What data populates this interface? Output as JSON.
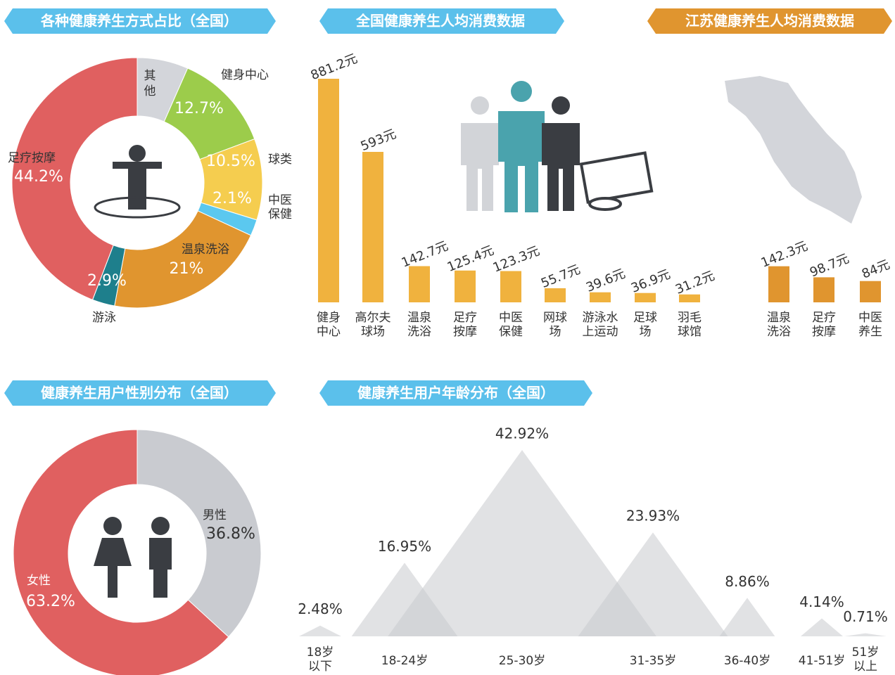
{
  "chart_data": [
    {
      "type": "donut",
      "title": "各种健康养生方式占比（全国）",
      "categories": [
        "其他",
        "健身中心",
        "球类",
        "中医保健",
        "温泉洗浴",
        "游泳",
        "足疗按摩"
      ],
      "values": [
        6.6,
        12.7,
        10.5,
        2.1,
        21,
        2.9,
        44.2
      ],
      "value_labels": [
        null,
        "12.7%",
        "10.5%",
        "2.1%",
        "21%",
        "2.9%",
        "44.2%"
      ],
      "colors": [
        "#d3d5da",
        "#9ccc4b",
        "#f5cd4f",
        "#5bc8ef",
        "#e0952f",
        "#1e7f8c",
        "#e06060"
      ]
    },
    {
      "type": "bar",
      "title": "全国健康养生人均消费数据",
      "categories": [
        "健身中心",
        "高尔夫球场",
        "温泉洗浴",
        "足疗按摩",
        "中医保健",
        "网球场",
        "游泳水上运动",
        "足球场",
        "羽毛球馆"
      ],
      "values": [
        881.2,
        593,
        142.7,
        125.4,
        123.3,
        55.7,
        39.6,
        36.9,
        31.2
      ],
      "value_labels": [
        "881.2元",
        "593元",
        "142.7元",
        "125.4元",
        "123.3元",
        "55.7元",
        "39.6元",
        "36.9元",
        "31.2元"
      ],
      "color": "#f0b23e"
    },
    {
      "type": "bar",
      "title": "江苏健康养生人均消费数据",
      "categories": [
        "温泉洗浴",
        "足疗按摩",
        "中医养生"
      ],
      "values": [
        142.3,
        98.7,
        84
      ],
      "value_labels": [
        "142.3元",
        "98.7元",
        "84元"
      ],
      "color": "#e0952f"
    },
    {
      "type": "donut",
      "title": "健康养生用户性别分布（全国）",
      "categories": [
        "男性",
        "女性"
      ],
      "values": [
        36.8,
        63.2
      ],
      "value_labels": [
        "36.8%",
        "63.2%"
      ],
      "colors": [
        "#c9cbd0",
        "#e06060"
      ]
    },
    {
      "type": "mountain",
      "title": "健康养生用户年龄分布（全国）",
      "categories": [
        "18岁以下",
        "18-24岁",
        "25-30岁",
        "31-35岁",
        "36-40岁",
        "41-51岁",
        "51岁以上"
      ],
      "values": [
        2.48,
        16.95,
        42.92,
        23.93,
        8.86,
        4.14,
        0.71
      ],
      "value_labels": [
        "2.48%",
        "16.95%",
        "42.92%",
        "23.93%",
        "8.86%",
        "4.14%",
        "0.71%"
      ],
      "color": "#c8cace"
    }
  ]
}
